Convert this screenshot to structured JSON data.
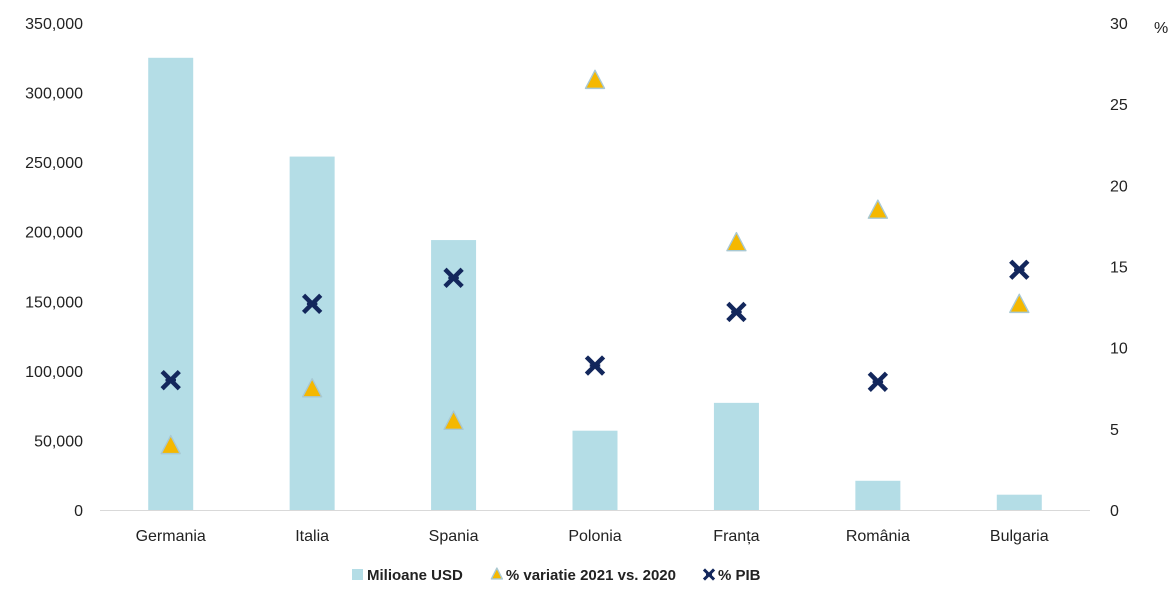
{
  "chart_data": {
    "type": "bar",
    "categories": [
      "Germania",
      "Italia",
      "Spania",
      "Polonia",
      "Franța",
      "România",
      "Bulgaria"
    ],
    "series": [
      {
        "name": "Milioane USD",
        "kind": "bar",
        "axis": "left",
        "color": "#b4dde6",
        "values": [
          325000,
          254000,
          194000,
          57000,
          77000,
          21000,
          11000
        ]
      },
      {
        "name": "% variatie 2021 vs. 2020",
        "kind": "marker-triangle",
        "axis": "right",
        "color": "#f5b800",
        "values": [
          4.0,
          7.5,
          5.5,
          26.5,
          16.5,
          18.5,
          12.7
        ]
      },
      {
        "name": "% PIB",
        "kind": "marker-x",
        "axis": "right",
        "color": "#13275c",
        "values": [
          8.0,
          12.7,
          14.3,
          8.9,
          12.2,
          7.9,
          14.8
        ]
      }
    ],
    "y_left": {
      "ylim": [
        0,
        350000
      ],
      "ticks": [
        "0",
        "50,000",
        "100,000",
        "150,000",
        "200,000",
        "250,000",
        "300,000",
        "350,000"
      ]
    },
    "y_right": {
      "ylim": [
        0,
        30
      ],
      "ticks": [
        "0",
        "5",
        "10",
        "15",
        "20",
        "25",
        "30"
      ],
      "unit": "%"
    },
    "grid": false,
    "legend": "bottom-center"
  }
}
